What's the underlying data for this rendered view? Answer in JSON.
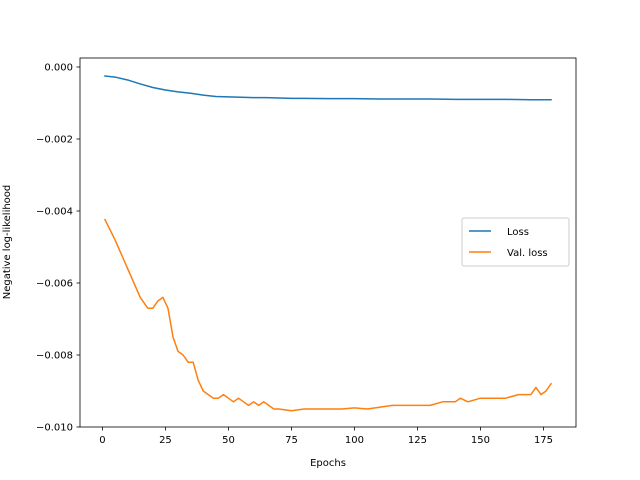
{
  "chart_data": {
    "type": "line",
    "title": "",
    "xlabel": "Epochs",
    "ylabel": "Negative log-likelihood",
    "xlim": [
      -8.9,
      187.9
    ],
    "ylim": [
      -0.01,
      0.00025
    ],
    "xticks": [
      0,
      25,
      50,
      75,
      100,
      125,
      150,
      175
    ],
    "xtick_labels": [
      "0",
      "25",
      "50",
      "75",
      "100",
      "125",
      "150",
      "175"
    ],
    "yticks": [
      0.0,
      -0.002,
      -0.004,
      -0.006,
      -0.008,
      -0.01
    ],
    "ytick_labels": [
      "0.000",
      "−0.002",
      "−0.004",
      "−0.006",
      "−0.008",
      "−0.010"
    ],
    "grid": false,
    "legend_position": "center-right",
    "series": [
      {
        "name": "Loss",
        "color": "#1f77b4",
        "x": [
          1,
          5,
          10,
          15,
          20,
          25,
          30,
          35,
          40,
          45,
          50,
          55,
          60,
          65,
          70,
          75,
          80,
          90,
          100,
          110,
          120,
          130,
          140,
          150,
          160,
          170,
          178
        ],
        "y": [
          -0.00025,
          -0.00028,
          -0.00036,
          -0.00047,
          -0.00057,
          -0.00064,
          -0.00069,
          -0.00073,
          -0.00078,
          -0.00082,
          -0.00083,
          -0.00084,
          -0.00085,
          -0.00085,
          -0.00086,
          -0.00087,
          -0.00087,
          -0.00088,
          -0.00088,
          -0.00089,
          -0.00089,
          -0.00089,
          -0.0009,
          -0.0009,
          -0.0009,
          -0.00091,
          -0.00091
        ]
      },
      {
        "name": "Val. loss",
        "color": "#ff7f0e",
        "x": [
          1,
          5,
          10,
          15,
          18,
          20,
          22,
          24,
          26,
          28,
          30,
          32,
          34,
          36,
          38,
          40,
          42,
          44,
          46,
          48,
          50,
          52,
          54,
          56,
          58,
          60,
          62,
          64,
          66,
          68,
          70,
          75,
          80,
          85,
          90,
          95,
          100,
          105,
          110,
          115,
          120,
          125,
          130,
          135,
          140,
          142,
          145,
          150,
          155,
          160,
          165,
          170,
          172,
          174,
          176,
          178
        ],
        "y": [
          -0.00424,
          -0.0048,
          -0.0056,
          -0.0064,
          -0.0067,
          -0.0067,
          -0.0065,
          -0.0064,
          -0.0067,
          -0.0075,
          -0.0079,
          -0.008,
          -0.0082,
          -0.0082,
          -0.0087,
          -0.009,
          -0.0091,
          -0.0092,
          -0.0092,
          -0.0091,
          -0.0092,
          -0.0093,
          -0.0092,
          -0.0093,
          -0.0094,
          -0.0093,
          -0.0094,
          -0.0093,
          -0.0094,
          -0.0095,
          -0.0095,
          -0.00955,
          -0.0095,
          -0.0095,
          -0.0095,
          -0.0095,
          -0.00947,
          -0.0095,
          -0.00945,
          -0.0094,
          -0.0094,
          -0.0094,
          -0.0094,
          -0.0093,
          -0.0093,
          -0.0092,
          -0.0093,
          -0.0092,
          -0.0092,
          -0.0092,
          -0.0091,
          -0.0091,
          -0.0089,
          -0.0091,
          -0.009,
          -0.0088
        ]
      }
    ]
  }
}
